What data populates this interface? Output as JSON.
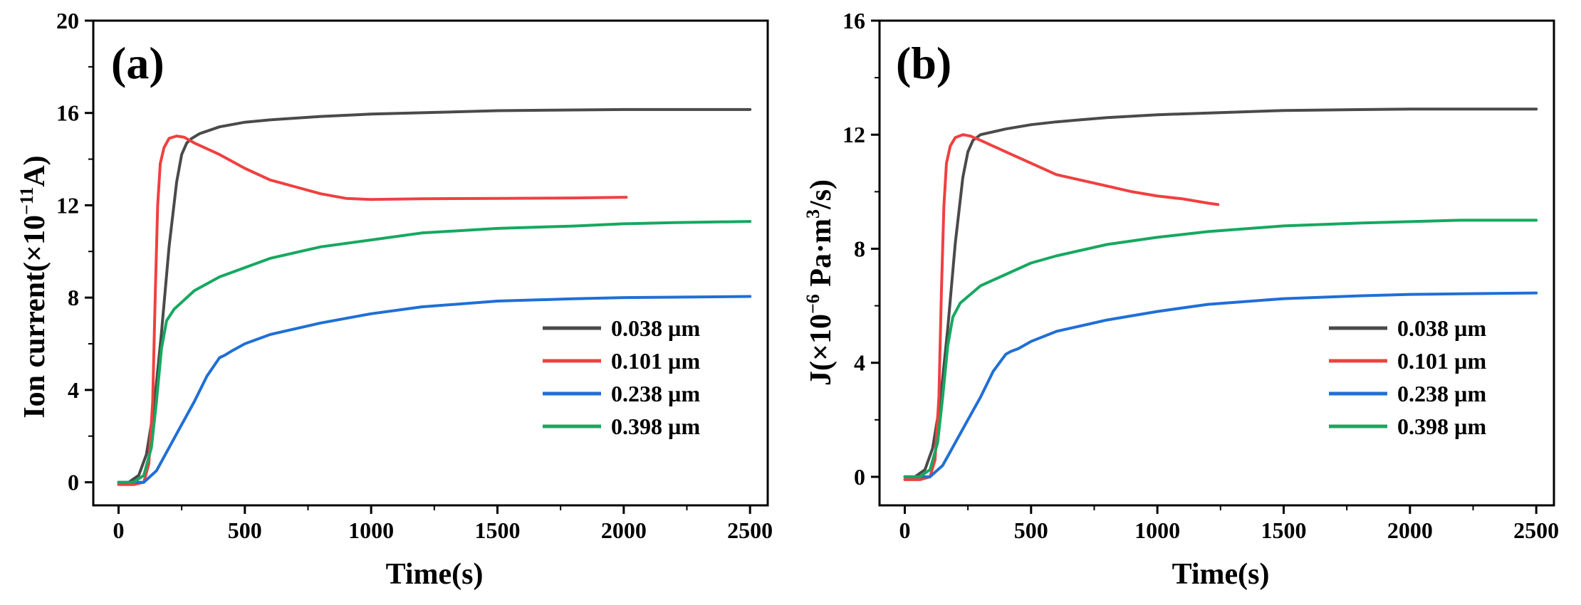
{
  "chart_data": [
    {
      "panel_label": "(a)",
      "type": "line",
      "xlabel": "Time(s)",
      "ylabel": {
        "main": "Ion current(×10",
        "exponent": "−11",
        "unit": "A)"
      },
      "xlim": [
        -100,
        2570
      ],
      "ylim": [
        -1,
        20
      ],
      "xticks": [
        "0",
        "500",
        "1000",
        "1500",
        "2000",
        "2500"
      ],
      "xtick_values": [
        0,
        500,
        1000,
        1500,
        2000,
        2500
      ],
      "yticks": [
        "0",
        "4",
        "8",
        "12",
        "16",
        "20"
      ],
      "ytick_values": [
        0,
        4,
        8,
        12,
        16,
        20
      ],
      "legend_position": "right-middle",
      "series": [
        {
          "name": "0.038 µm",
          "color": "#4a4a4a",
          "x": [
            0,
            40,
            80,
            110,
            140,
            170,
            200,
            230,
            250,
            270,
            290,
            320,
            400,
            500,
            600,
            800,
            1000,
            1500,
            2000,
            2500
          ],
          "y": [
            0,
            0,
            0.3,
            1.2,
            3.2,
            6.5,
            10.2,
            13.0,
            14.2,
            14.7,
            14.9,
            15.1,
            15.4,
            15.6,
            15.7,
            15.85,
            15.95,
            16.1,
            16.15,
            16.15
          ]
        },
        {
          "name": "0.101 µm",
          "color": "#f04040",
          "x": [
            0,
            60,
            100,
            120,
            135,
            145,
            155,
            165,
            180,
            200,
            230,
            260,
            300,
            400,
            500,
            600,
            700,
            800,
            900,
            1000,
            1200,
            1500,
            1800,
            2010
          ],
          "y": [
            -0.1,
            -0.1,
            0,
            0.8,
            3.5,
            8.0,
            12.0,
            13.8,
            14.5,
            14.9,
            15.0,
            14.95,
            14.7,
            14.2,
            13.6,
            13.1,
            12.8,
            12.5,
            12.3,
            12.25,
            12.28,
            12.3,
            12.32,
            12.35
          ]
        },
        {
          "name": "0.238 µm",
          "color": "#1f6fd6",
          "x": [
            0,
            60,
            100,
            150,
            200,
            250,
            300,
            350,
            400,
            420,
            450,
            500,
            600,
            800,
            1000,
            1200,
            1500,
            1800,
            2000,
            2200,
            2500
          ],
          "y": [
            0,
            0,
            0,
            0.5,
            1.5,
            2.5,
            3.5,
            4.6,
            5.4,
            5.5,
            5.7,
            6.0,
            6.4,
            6.9,
            7.3,
            7.6,
            7.85,
            7.95,
            8.0,
            8.02,
            8.05
          ]
        },
        {
          "name": "0.398 µm",
          "color": "#16a860",
          "x": [
            0,
            60,
            100,
            130,
            150,
            170,
            190,
            220,
            300,
            400,
            500,
            600,
            800,
            1000,
            1200,
            1500,
            1800,
            2000,
            2200,
            2500
          ],
          "y": [
            0,
            0,
            0.3,
            1.5,
            3.5,
            5.8,
            7.0,
            7.5,
            8.3,
            8.9,
            9.3,
            9.7,
            10.2,
            10.5,
            10.8,
            11.0,
            11.1,
            11.2,
            11.25,
            11.3
          ]
        }
      ]
    },
    {
      "panel_label": "(b)",
      "type": "line",
      "xlabel": "Time(s)",
      "ylabel": {
        "main": "J(×10",
        "exponent": "−6",
        "unit": " Pa·m",
        "exponent2": "3",
        "unit2": "/s)"
      },
      "xlim": [
        -100,
        2570
      ],
      "ylim": [
        -1,
        16
      ],
      "xticks": [
        "0",
        "500",
        "1000",
        "1500",
        "2000",
        "2500"
      ],
      "xtick_values": [
        0,
        500,
        1000,
        1500,
        2000,
        2500
      ],
      "yticks": [
        "0",
        "4",
        "8",
        "12",
        "16"
      ],
      "ytick_values": [
        0,
        4,
        8,
        12,
        16
      ],
      "legend_position": "right-middle",
      "series": [
        {
          "name": "0.038 µm",
          "color": "#4a4a4a",
          "x": [
            0,
            40,
            80,
            110,
            140,
            170,
            200,
            230,
            250,
            270,
            300,
            400,
            500,
            600,
            800,
            1000,
            1500,
            2000,
            2500
          ],
          "y": [
            0,
            0,
            0.25,
            1.0,
            2.6,
            5.2,
            8.2,
            10.5,
            11.4,
            11.8,
            12.0,
            12.2,
            12.35,
            12.45,
            12.6,
            12.7,
            12.85,
            12.9,
            12.9
          ]
        },
        {
          "name": "0.101 µm",
          "color": "#f04040",
          "x": [
            0,
            60,
            100,
            120,
            135,
            145,
            155,
            165,
            180,
            200,
            230,
            260,
            300,
            400,
            500,
            600,
            700,
            800,
            900,
            1000,
            1100,
            1200,
            1240
          ],
          "y": [
            -0.1,
            -0.1,
            0,
            0.6,
            2.8,
            6.5,
            9.5,
            11.0,
            11.6,
            11.9,
            12.0,
            11.95,
            11.8,
            11.4,
            11.0,
            10.6,
            10.4,
            10.2,
            10.0,
            9.85,
            9.75,
            9.6,
            9.55
          ]
        },
        {
          "name": "0.238 µm",
          "color": "#1f6fd6",
          "x": [
            0,
            60,
            100,
            150,
            200,
            250,
            300,
            350,
            400,
            420,
            450,
            500,
            600,
            800,
            1000,
            1200,
            1500,
            1800,
            2000,
            2200,
            2500
          ],
          "y": [
            0,
            0,
            0,
            0.4,
            1.2,
            2.0,
            2.8,
            3.7,
            4.3,
            4.4,
            4.5,
            4.75,
            5.1,
            5.5,
            5.8,
            6.05,
            6.25,
            6.35,
            6.4,
            6.42,
            6.45
          ]
        },
        {
          "name": "0.398 µm",
          "color": "#16a860",
          "x": [
            0,
            60,
            100,
            130,
            150,
            170,
            190,
            220,
            300,
            400,
            500,
            600,
            800,
            1000,
            1200,
            1500,
            1800,
            2000,
            2200,
            2500
          ],
          "y": [
            0,
            0,
            0.25,
            1.2,
            2.8,
            4.6,
            5.6,
            6.1,
            6.7,
            7.1,
            7.5,
            7.75,
            8.15,
            8.4,
            8.6,
            8.8,
            8.9,
            8.95,
            9.0,
            9.0
          ]
        }
      ]
    }
  ]
}
